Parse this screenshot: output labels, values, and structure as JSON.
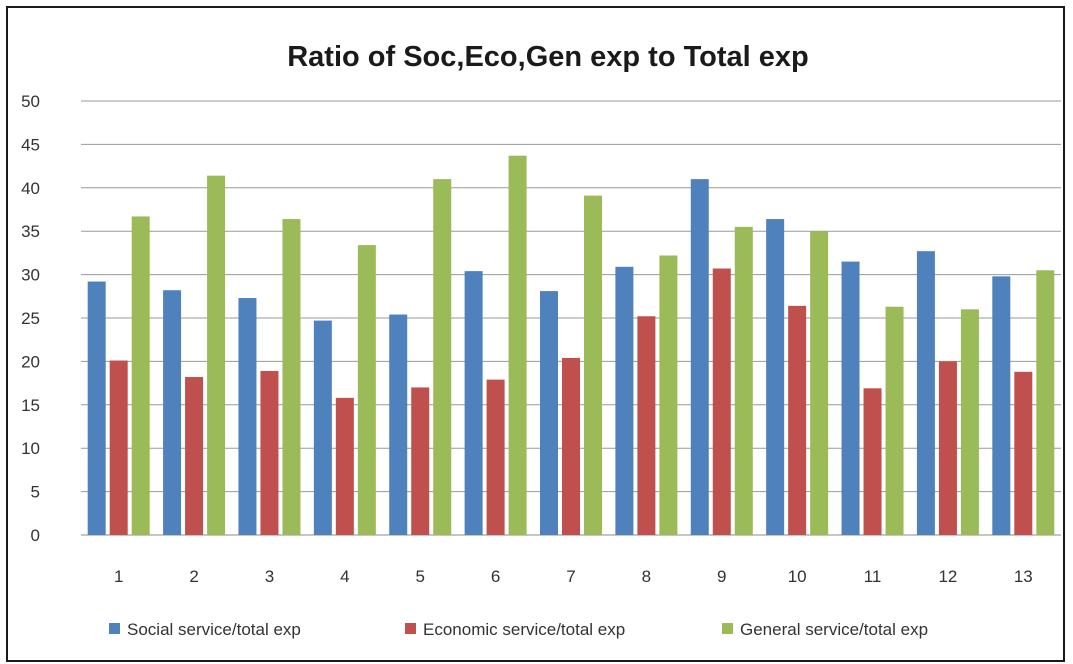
{
  "chart_data": {
    "type": "bar",
    "title": "Ratio of Soc,Eco,Gen exp to Total exp",
    "xlabel": "",
    "ylabel": "",
    "ylim": [
      0,
      50
    ],
    "yticks": [
      0,
      5,
      10,
      15,
      20,
      25,
      30,
      35,
      40,
      45,
      50
    ],
    "grid": true,
    "legend_position": "bottom",
    "categories": [
      "1",
      "2",
      "3",
      "4",
      "5",
      "6",
      "7",
      "8",
      "9",
      "10",
      "11",
      "12",
      "13"
    ],
    "series": [
      {
        "name": "Social service/total exp",
        "color": "#4f81bd",
        "values": [
          29.2,
          28.2,
          27.3,
          24.7,
          25.4,
          30.4,
          28.1,
          30.9,
          41.0,
          36.4,
          31.5,
          32.7,
          29.8
        ]
      },
      {
        "name": "Economic service/total exp",
        "color": "#c0504d",
        "values": [
          20.1,
          18.2,
          18.9,
          15.8,
          17.0,
          17.9,
          20.4,
          25.2,
          30.7,
          26.4,
          16.9,
          20.0,
          18.8
        ]
      },
      {
        "name": "General service/total exp",
        "color": "#9bbb59",
        "values": [
          36.7,
          41.4,
          36.4,
          33.4,
          41.0,
          43.7,
          39.1,
          32.2,
          35.5,
          35.0,
          26.3,
          26.0,
          30.5
        ]
      }
    ]
  }
}
